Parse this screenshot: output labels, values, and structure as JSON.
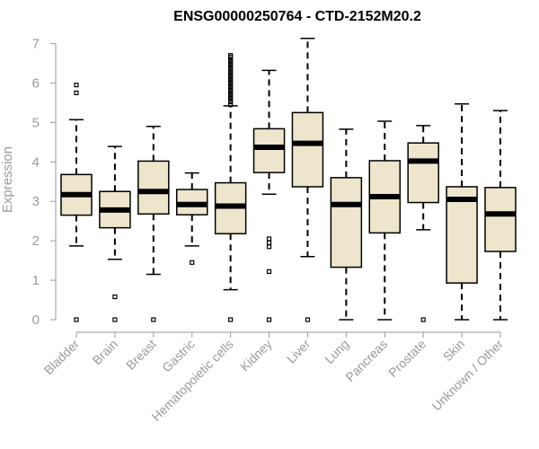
{
  "chart_data": {
    "type": "box",
    "title": "ENSG00000250764 - CTD-2152M20.2",
    "ylabel": "Expression",
    "xlabel": "",
    "ylim": [
      0,
      7.2
    ],
    "yticks": [
      "0",
      "1",
      "2",
      "3",
      "4",
      "5",
      "6",
      "7"
    ],
    "grid": false,
    "colors": {
      "box_fill": "#ede6cc",
      "stroke": "#000000",
      "axis": "#9a9a9a"
    },
    "categories": [
      "Bladder",
      "Brain",
      "Breast",
      "Gastric",
      "Hematopoietic cells",
      "Kidney",
      "Liver",
      "Lung",
      "Pancreas",
      "Prostate",
      "Skin",
      "Unknown / Other"
    ],
    "boxes": [
      {
        "q1": 2.65,
        "median": 3.17,
        "q3": 3.68,
        "whisker_low": 1.87,
        "whisker_high": 5.07,
        "outliers": [
          0,
          5.75,
          5.95
        ]
      },
      {
        "q1": 2.33,
        "median": 2.78,
        "q3": 3.25,
        "whisker_low": 1.53,
        "whisker_high": 4.39,
        "outliers": [
          0,
          0.58
        ]
      },
      {
        "q1": 2.68,
        "median": 3.25,
        "q3": 4.02,
        "whisker_low": 1.15,
        "whisker_high": 4.9,
        "outliers": [
          0
        ]
      },
      {
        "q1": 2.66,
        "median": 2.92,
        "q3": 3.3,
        "whisker_low": 1.87,
        "whisker_high": 3.72,
        "outliers": [
          1.45
        ]
      },
      {
        "q1": 2.18,
        "median": 2.88,
        "q3": 3.47,
        "whisker_low": 0.76,
        "whisker_high": 5.42,
        "outliers": [
          0,
          5.45,
          5.52,
          5.58,
          5.64,
          5.7,
          5.76,
          5.82,
          5.88,
          5.94,
          6.0,
          6.06,
          6.12,
          6.18,
          6.24,
          6.3,
          6.36,
          6.42,
          6.48,
          6.54,
          6.6,
          6.66,
          6.7
        ]
      },
      {
        "q1": 3.73,
        "median": 4.37,
        "q3": 4.84,
        "whisker_low": 3.18,
        "whisker_high": 6.32,
        "outliers": [
          0,
          1.22,
          1.85,
          1.95,
          2.05
        ]
      },
      {
        "q1": 3.37,
        "median": 4.47,
        "q3": 5.25,
        "whisker_low": 1.6,
        "whisker_high": 7.13,
        "outliers": [
          0
        ]
      },
      {
        "q1": 1.33,
        "median": 2.92,
        "q3": 3.6,
        "whisker_low": 0,
        "whisker_high": 4.83,
        "outliers": []
      },
      {
        "q1": 2.2,
        "median": 3.12,
        "q3": 4.03,
        "whisker_low": 0,
        "whisker_high": 5.03,
        "outliers": []
      },
      {
        "q1": 2.97,
        "median": 4.02,
        "q3": 4.48,
        "whisker_low": 2.28,
        "whisker_high": 4.92,
        "outliers": [
          0
        ]
      },
      {
        "q1": 0.93,
        "median": 3.05,
        "q3": 3.37,
        "whisker_low": 0,
        "whisker_high": 5.47,
        "outliers": []
      },
      {
        "q1": 1.73,
        "median": 2.68,
        "q3": 3.35,
        "whisker_low": 0,
        "whisker_high": 5.3,
        "outliers": []
      }
    ]
  }
}
